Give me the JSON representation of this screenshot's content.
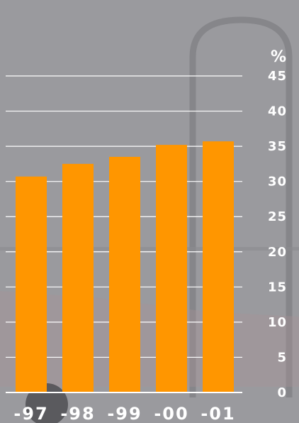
{
  "chart_data": {
    "type": "bar",
    "categories": [
      "-97",
      "-98",
      "-99",
      "-00",
      "-01"
    ],
    "values": [
      30.7,
      32.5,
      33.5,
      35.2,
      35.7
    ],
    "ylabel": "%",
    "ylim": [
      0,
      45
    ],
    "yticks": [
      0,
      5,
      10,
      15,
      20,
      25,
      30,
      35,
      40,
      45
    ],
    "grid": true,
    "bar_color": "#ff9600",
    "grid_color": "#ffffff",
    "text_color": "#ffffff",
    "background_color": "#9a9a9e"
  }
}
